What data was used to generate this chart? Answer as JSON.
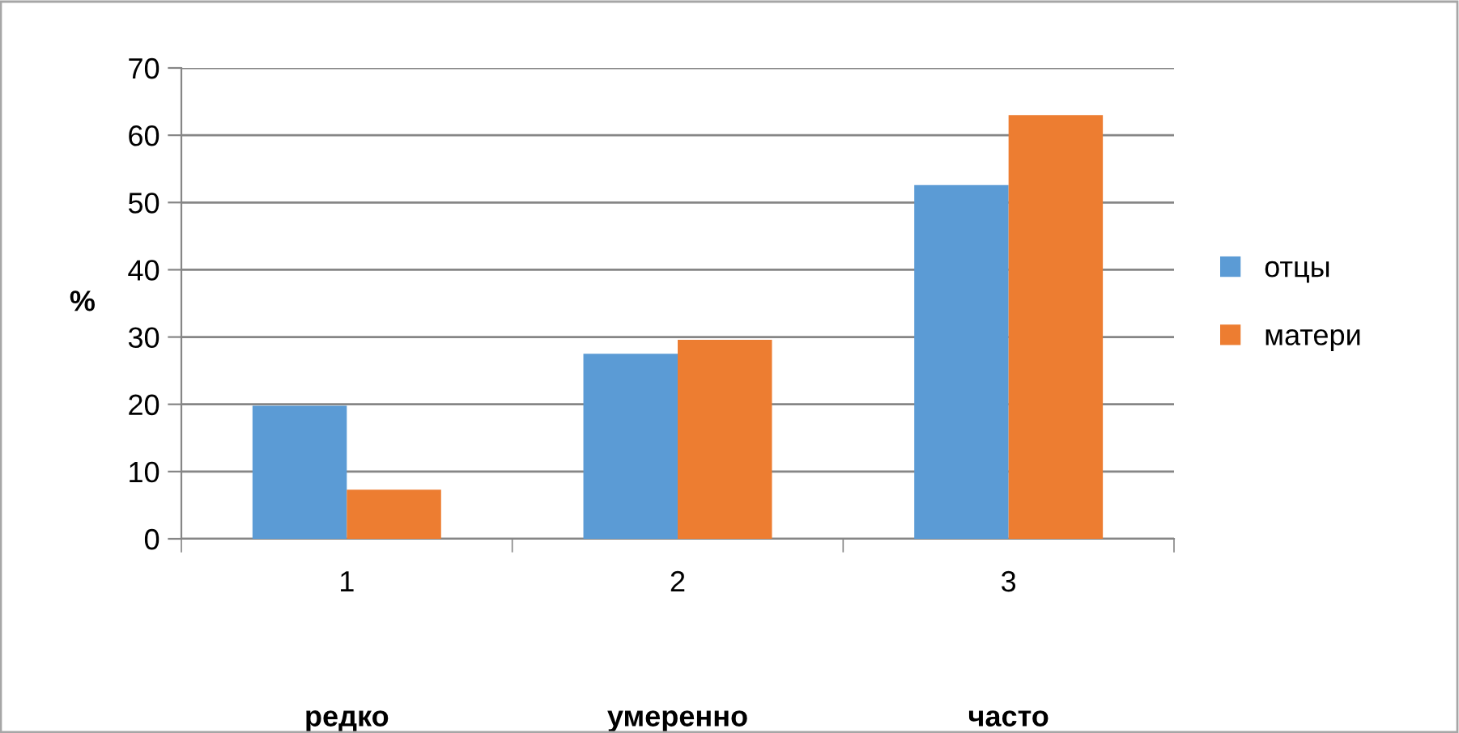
{
  "chart_data": {
    "type": "bar",
    "ylabel": "%",
    "categories": [
      "1",
      "2",
      "3"
    ],
    "series": [
      {
        "name": "отцы",
        "color": "#5b9bd5",
        "values": [
          19.8,
          27.5,
          52.6
        ]
      },
      {
        "name": "матери",
        "color": "#ed7d31",
        "values": [
          7.3,
          29.6,
          63.0
        ]
      }
    ],
    "ylim": [
      0,
      70
    ],
    "yticks": [
      0,
      10,
      20,
      30,
      40,
      50,
      60,
      70
    ],
    "grid": "y",
    "legend": "right",
    "annotations": [
      "редко",
      "умеренно",
      "часто"
    ]
  }
}
